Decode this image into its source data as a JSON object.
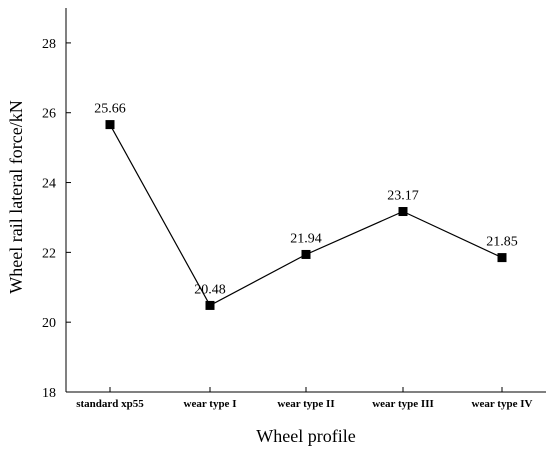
{
  "chart_data": {
    "type": "line",
    "title": "",
    "xlabel": "Wheel profile",
    "ylabel": "Wheel rail lateral force/kN",
    "categories": [
      "standard xp55",
      "wear type I",
      "wear type II",
      "wear type III",
      "wear type IV"
    ],
    "series": [
      {
        "values": [
          25.66,
          20.48,
          21.94,
          23.17,
          21.85
        ],
        "data_labels": [
          "25.66",
          "20.48",
          "21.94",
          "23.17",
          "21.85"
        ],
        "color": "#000000",
        "marker": "square"
      }
    ],
    "ylim": [
      18,
      29
    ],
    "yticks": [
      18,
      20,
      22,
      24,
      26,
      28
    ],
    "grid": false,
    "legend": "none"
  }
}
